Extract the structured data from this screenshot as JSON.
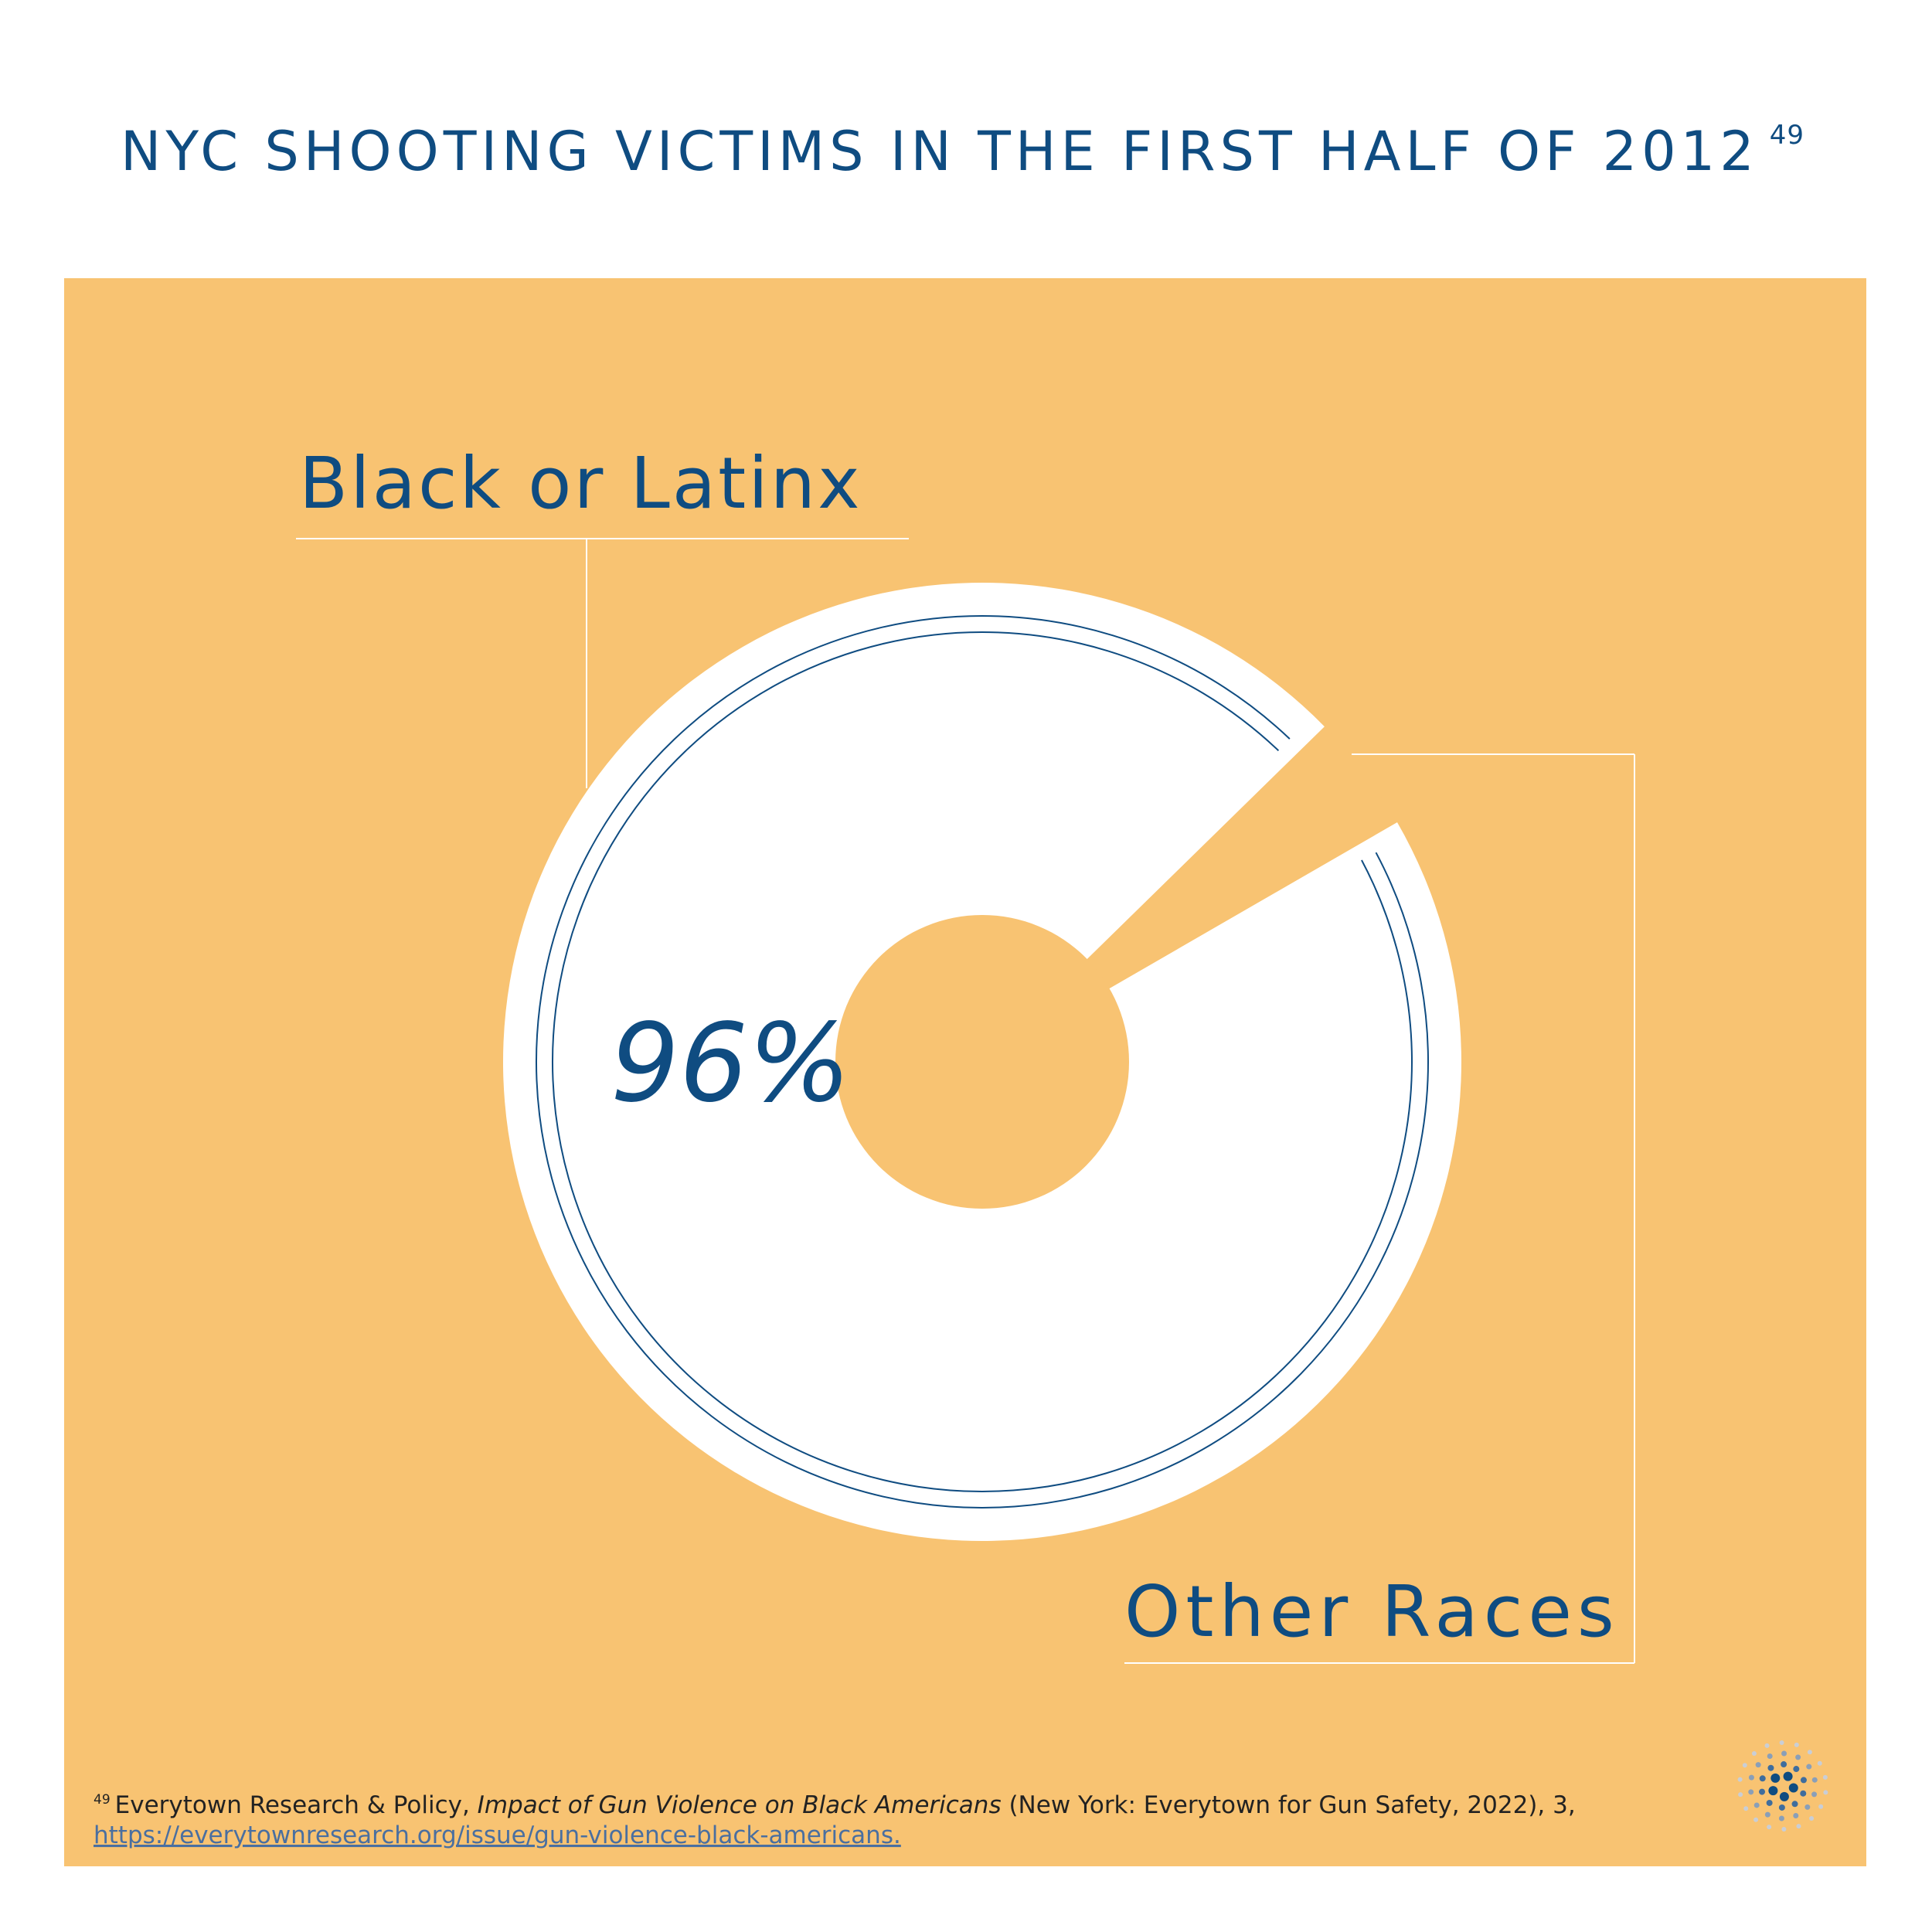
{
  "chart_data": {
    "type": "pie",
    "title": "NYC SHOOTING VICTIMS IN THE FIRST HALF OF 2012",
    "title_note": "49",
    "categories": [
      "Black or Latinx",
      "Other Races"
    ],
    "values": [
      96,
      4
    ],
    "value_labels": [
      "96%",
      null
    ],
    "colors": [
      "#ffffff",
      "#f8c372"
    ]
  },
  "footnote": {
    "marker": "49",
    "source": "Everytown Research & Policy, ",
    "work": "Impact of Gun Violence on Black Americans",
    "publication": " (New York: Everytown for Gun Safety, 2022), 3,",
    "url": "https://everytownresearch.org/issue/gun-violence-black-americans."
  }
}
